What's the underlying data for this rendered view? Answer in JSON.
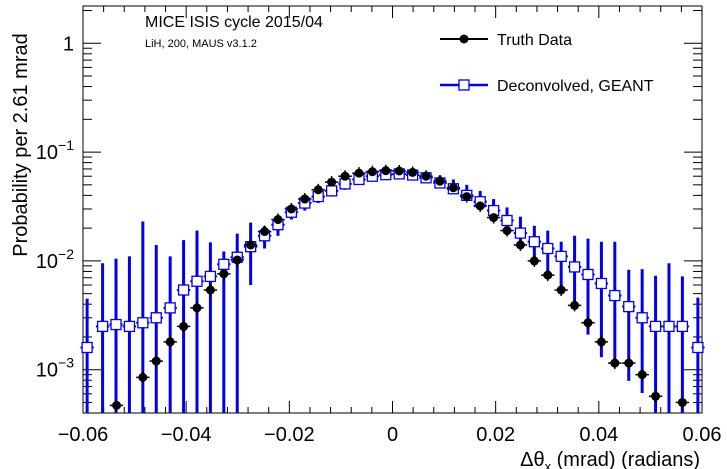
{
  "chart_data": {
    "type": "scatter",
    "title": "",
    "annotations": {
      "line1": "MICE ISIS cycle 2015/04",
      "line2": "LiH, 200, MAUS v3.1.2"
    },
    "xlabel": "Δθ",
    "xlabel_sub": "x",
    "xlabel_rest": " (mrad) (radians)",
    "ylabel": "Probability per 2.61 mrad",
    "xlim": [
      -0.06,
      0.06
    ],
    "ylim": [
      0.0004,
      2.2
    ],
    "yscale": "log",
    "grid": false,
    "legend_position": "top-right",
    "x_ticks": [
      {
        "value": -0.06,
        "label": "−0.06"
      },
      {
        "value": -0.04,
        "label": "−0.04"
      },
      {
        "value": -0.02,
        "label": "−0.02"
      },
      {
        "value": 0,
        "label": "0"
      },
      {
        "value": 0.02,
        "label": "0.02"
      },
      {
        "value": 0.04,
        "label": "0.04"
      },
      {
        "value": 0.06,
        "label": "0.06"
      }
    ],
    "y_ticks": [
      {
        "value": 0.001,
        "base": "10",
        "exp": "−3"
      },
      {
        "value": 0.01,
        "base": "10",
        "exp": "−2"
      },
      {
        "value": 0.1,
        "base": "10",
        "exp": "−1"
      },
      {
        "value": 1,
        "base": "1",
        "exp": ""
      }
    ],
    "series": [
      {
        "name": "Truth Data",
        "marker": "filled-circle",
        "color": "#000000",
        "x": [
          -0.0535,
          -0.0484,
          -0.0458,
          -0.0431,
          -0.0405,
          -0.0379,
          -0.0353,
          -0.0327,
          -0.0301,
          -0.0275,
          -0.0248,
          -0.0222,
          -0.0196,
          -0.017,
          -0.0144,
          -0.0118,
          -0.0092,
          -0.0065,
          -0.0039,
          -0.0013,
          0.0013,
          0.0039,
          0.0065,
          0.0092,
          0.0118,
          0.0144,
          0.017,
          0.0196,
          0.0222,
          0.0248,
          0.0275,
          0.0301,
          0.0327,
          0.0353,
          0.0379,
          0.0405,
          0.0431,
          0.0458,
          0.0484,
          0.051,
          0.0562
        ],
        "values": [
          0.00047,
          0.00085,
          0.0012,
          0.0018,
          0.0025,
          0.0037,
          0.0054,
          0.0076,
          0.0102,
          0.014,
          0.0186,
          0.024,
          0.03,
          0.037,
          0.045,
          0.053,
          0.06,
          0.064,
          0.066,
          0.0675,
          0.067,
          0.065,
          0.06,
          0.054,
          0.047,
          0.039,
          0.032,
          0.025,
          0.019,
          0.014,
          0.01,
          0.0074,
          0.0054,
          0.0039,
          0.0027,
          0.0018,
          0.00115,
          0.00115,
          0.0009,
          0.00057,
          0.0005
        ]
      },
      {
        "name": "Deconvolved, GEANT",
        "marker": "open-square",
        "color": "#0000ee",
        "x": [
          -0.0592,
          -0.0562,
          -0.0536,
          -0.051,
          -0.0484,
          -0.0458,
          -0.0431,
          -0.0405,
          -0.0379,
          -0.0353,
          -0.0327,
          -0.0301,
          -0.0275,
          -0.0248,
          -0.0222,
          -0.0196,
          -0.017,
          -0.0144,
          -0.0118,
          -0.0092,
          -0.0065,
          -0.0039,
          -0.0013,
          0.0013,
          0.0039,
          0.0065,
          0.0092,
          0.0118,
          0.0144,
          0.017,
          0.0196,
          0.0222,
          0.0248,
          0.0275,
          0.0301,
          0.0327,
          0.0353,
          0.0379,
          0.0405,
          0.0431,
          0.0458,
          0.0484,
          0.051,
          0.0536,
          0.0562,
          0.0592
        ],
        "values": [
          0.0016,
          0.0025,
          0.0026,
          0.0025,
          0.0027,
          0.003,
          0.0037,
          0.0054,
          0.0065,
          0.0072,
          0.0093,
          0.0108,
          0.0135,
          0.017,
          0.0215,
          0.028,
          0.034,
          0.039,
          0.044,
          0.051,
          0.056,
          0.06,
          0.062,
          0.063,
          0.0615,
          0.058,
          0.052,
          0.046,
          0.04,
          0.035,
          0.029,
          0.0235,
          0.018,
          0.015,
          0.013,
          0.011,
          0.0088,
          0.0075,
          0.0062,
          0.0048,
          0.0038,
          0.003,
          0.0025,
          0.0025,
          0.0025,
          0.0016
        ],
        "err_low": [
          0.0004,
          0.0004,
          0.0004,
          0.0004,
          0.0004,
          0.0004,
          0.0004,
          0.0004,
          0.0004,
          0.0004,
          0.0004,
          0.0004,
          0.006,
          0.013,
          0.017,
          0.024,
          0.029,
          0.034,
          0.039,
          0.045,
          0.052,
          0.057,
          0.06,
          0.06,
          0.058,
          0.055,
          0.048,
          0.042,
          0.037,
          0.032,
          0.027,
          0.02,
          0.014,
          0.01,
          0.007,
          0.0057,
          0.0041,
          0.0021,
          0.0013,
          0.0011,
          0.00079,
          0.00061,
          0.0004,
          0.0004,
          0.0004,
          0.0004
        ],
        "err_high": [
          0.0045,
          0.0095,
          0.0105,
          0.011,
          0.023,
          0.014,
          0.011,
          0.0155,
          0.019,
          0.0148,
          0.0122,
          0.0178,
          0.0225,
          0.0208,
          0.0262,
          0.0328,
          0.0395,
          0.046,
          0.052,
          0.058,
          0.062,
          0.066,
          0.071,
          0.072,
          0.071,
          0.066,
          0.061,
          0.056,
          0.05,
          0.044,
          0.037,
          0.031,
          0.0255,
          0.021,
          0.019,
          0.015,
          0.017,
          0.016,
          0.015,
          0.015,
          0.0083,
          0.0084,
          0.0073,
          0.0095,
          0.0072,
          0.0046
        ]
      }
    ]
  }
}
